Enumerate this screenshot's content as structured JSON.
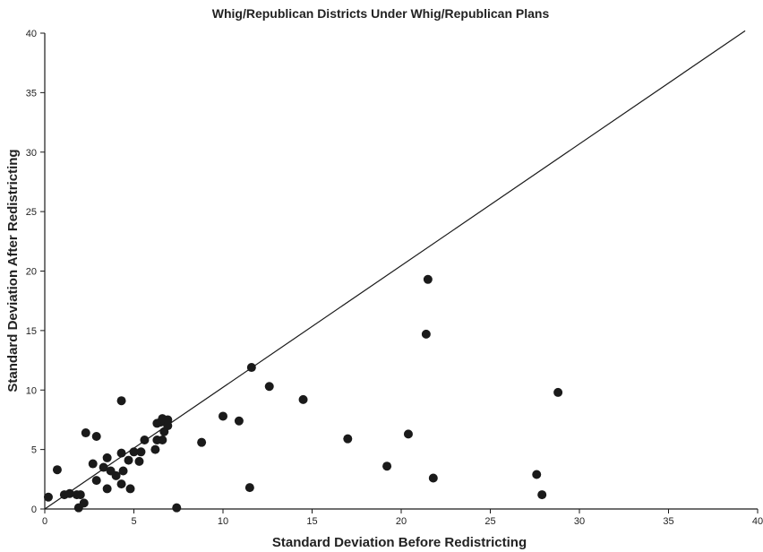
{
  "chart_data": {
    "type": "scatter",
    "title": "Whig/Republican Districts Under Whig/Republican Plans",
    "xlabel": "Standard Deviation Before Redistricting",
    "ylabel": "Standard Deviation After Redistricting",
    "xlim": [
      0,
      40
    ],
    "ylim": [
      0,
      40
    ],
    "x_ticks": [
      "0",
      "5",
      "10",
      "15",
      "20",
      "25",
      "30",
      "35",
      "40"
    ],
    "y_ticks": [
      "0",
      "5",
      "10",
      "15",
      "20",
      "25",
      "30",
      "35",
      "40"
    ],
    "grid": false,
    "legend": "none",
    "reference_line": {
      "label": "",
      "x": [
        0,
        39.3
      ],
      "y": [
        0,
        40.2
      ]
    },
    "colors": {
      "points": "#1a1a1a",
      "line": "#1a1a1a",
      "axis": "#1a1a1a"
    },
    "series": [
      {
        "points": [
          {
            "x": 0.2,
            "y": 1.0
          },
          {
            "x": 0.7,
            "y": 3.3
          },
          {
            "x": 1.1,
            "y": 1.2
          },
          {
            "x": 1.4,
            "y": 1.3
          },
          {
            "x": 1.8,
            "y": 1.2
          },
          {
            "x": 2.0,
            "y": 1.2
          },
          {
            "x": 1.9,
            "y": 0.1
          },
          {
            "x": 2.2,
            "y": 0.5
          },
          {
            "x": 2.3,
            "y": 6.4
          },
          {
            "x": 2.7,
            "y": 3.8
          },
          {
            "x": 2.9,
            "y": 6.1
          },
          {
            "x": 2.9,
            "y": 2.4
          },
          {
            "x": 3.3,
            "y": 3.5
          },
          {
            "x": 3.5,
            "y": 4.3
          },
          {
            "x": 3.5,
            "y": 1.7
          },
          {
            "x": 3.7,
            "y": 3.2
          },
          {
            "x": 4.0,
            "y": 2.8
          },
          {
            "x": 4.3,
            "y": 9.1
          },
          {
            "x": 4.3,
            "y": 4.7
          },
          {
            "x": 4.3,
            "y": 2.1
          },
          {
            "x": 4.4,
            "y": 3.2
          },
          {
            "x": 4.7,
            "y": 4.1
          },
          {
            "x": 4.8,
            "y": 1.7
          },
          {
            "x": 5.0,
            "y": 4.8
          },
          {
            "x": 5.3,
            "y": 4.0
          },
          {
            "x": 5.4,
            "y": 4.8
          },
          {
            "x": 5.6,
            "y": 5.8
          },
          {
            "x": 6.2,
            "y": 5.0
          },
          {
            "x": 6.3,
            "y": 5.8
          },
          {
            "x": 6.3,
            "y": 7.2
          },
          {
            "x": 6.5,
            "y": 7.3
          },
          {
            "x": 6.6,
            "y": 5.8
          },
          {
            "x": 6.6,
            "y": 7.6
          },
          {
            "x": 6.7,
            "y": 6.5
          },
          {
            "x": 6.9,
            "y": 7.0
          },
          {
            "x": 6.9,
            "y": 7.5
          },
          {
            "x": 7.4,
            "y": 0.1
          },
          {
            "x": 8.8,
            "y": 5.6
          },
          {
            "x": 10.0,
            "y": 7.8
          },
          {
            "x": 10.9,
            "y": 7.4
          },
          {
            "x": 11.5,
            "y": 1.8
          },
          {
            "x": 11.6,
            "y": 11.9
          },
          {
            "x": 12.6,
            "y": 10.3
          },
          {
            "x": 14.5,
            "y": 9.2
          },
          {
            "x": 17.0,
            "y": 5.9
          },
          {
            "x": 19.2,
            "y": 3.6
          },
          {
            "x": 20.4,
            "y": 6.3
          },
          {
            "x": 21.4,
            "y": 14.7
          },
          {
            "x": 21.5,
            "y": 19.3
          },
          {
            "x": 21.8,
            "y": 2.6
          },
          {
            "x": 27.6,
            "y": 2.9
          },
          {
            "x": 27.9,
            "y": 1.2
          },
          {
            "x": 28.8,
            "y": 9.8
          }
        ]
      }
    ]
  }
}
